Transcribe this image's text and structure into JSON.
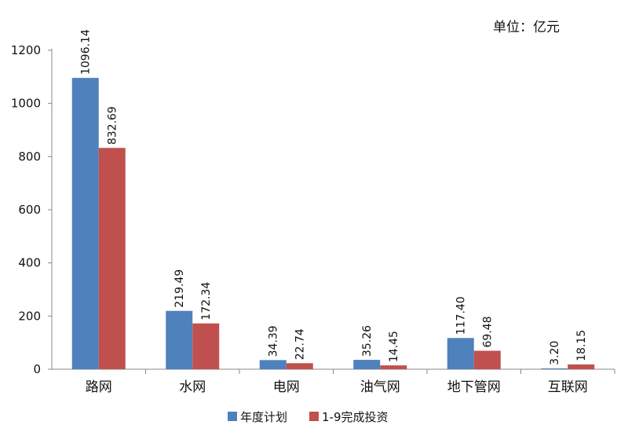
{
  "unit_label": "单位：亿元",
  "chart_data": {
    "type": "bar",
    "categories": [
      "路网",
      "水网",
      "电网",
      "油气网",
      "地下管网",
      "互联网"
    ],
    "series": [
      {
        "name": "年度计划",
        "color": "#4f81bd",
        "values": [
          1096.14,
          219.49,
          34.39,
          35.26,
          117.4,
          3.2
        ],
        "labels": [
          "1096.14",
          "219.49",
          "34.39",
          "35.26",
          "117.40",
          "3.20"
        ]
      },
      {
        "name": "1-9完成投资",
        "color": "#c0504d",
        "values": [
          832.69,
          172.34,
          22.74,
          14.45,
          69.48,
          18.15
        ],
        "labels": [
          "832.69",
          "172.34",
          "22.74",
          "14.45",
          "69.48",
          "18.15"
        ]
      }
    ],
    "yticks": [
      "0",
      "200",
      "400",
      "600",
      "800",
      "1000",
      "1200"
    ],
    "ylim": [
      0,
      1200
    ],
    "grid": false,
    "legend": "bottom-center"
  }
}
